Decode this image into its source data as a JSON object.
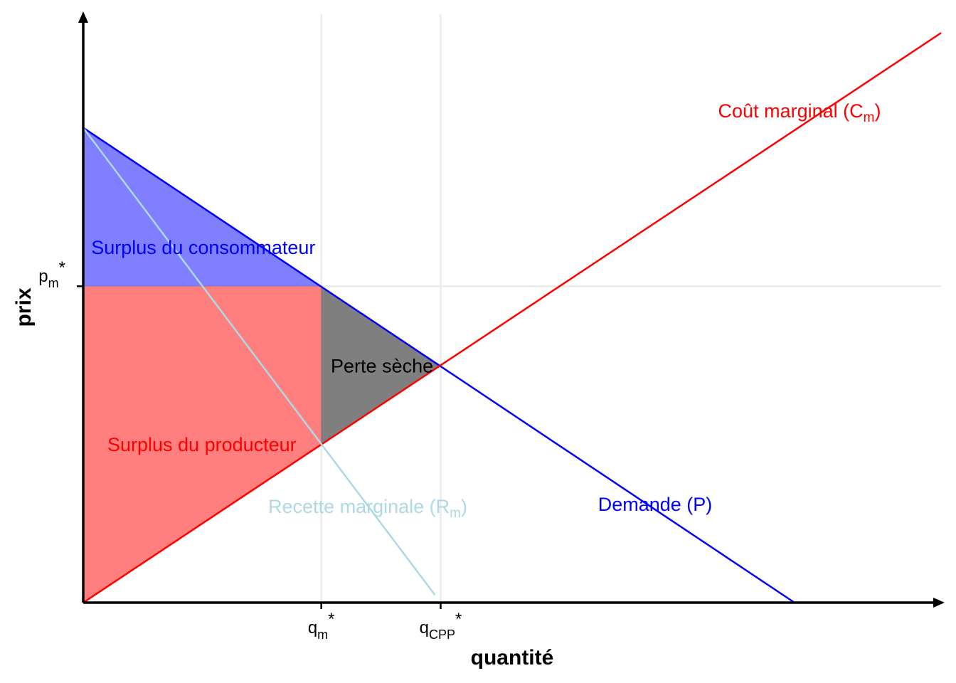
{
  "chart_data": {
    "type": "line",
    "title": "",
    "xlabel": "quantité",
    "ylabel": "prix",
    "xlim": [
      0,
      12
    ],
    "ylim": [
      0,
      8.5
    ],
    "grid": false,
    "x_ticks": [
      {
        "value": 3.33,
        "base": "q",
        "sub": "m",
        "sup": "*"
      },
      {
        "value": 5.0,
        "base": "q",
        "sub": "CPP",
        "sup": "*"
      }
    ],
    "y_ticks": [
      {
        "value": 4.57,
        "base": "p",
        "sub": "m",
        "sup": "*"
      }
    ],
    "series": [
      {
        "name": "Demande (P)",
        "label_main": "Demande (P)",
        "label_sub": "",
        "label_tail": "",
        "color": "#0000ff",
        "x": [
          0,
          9.95
        ],
        "y": [
          6.86,
          0
        ]
      },
      {
        "name": "Coût marginal (Cm)",
        "label_main": "Coût marginal (C",
        "label_sub": "m",
        "label_tail": ")",
        "color": "#ff0000",
        "x": [
          0,
          12.0
        ],
        "y": [
          0,
          8.23
        ]
      },
      {
        "name": "Recette marginale (Rm)",
        "label_main": "Recette marginale (R",
        "label_sub": "m",
        "label_tail": ")",
        "color": "#add8e6",
        "x": [
          0,
          4.92
        ],
        "y": [
          6.86,
          0.11
        ]
      }
    ],
    "areas": [
      {
        "name": "Surplus du consommateur",
        "color": "#0000ff",
        "opacity": 0.5,
        "x": [
          0,
          0,
          3.33
        ],
        "y": [
          6.86,
          4.57,
          4.57
        ]
      },
      {
        "name": "Surplus du producteur",
        "color": "#ff0000",
        "opacity": 0.5,
        "x": [
          0,
          0,
          3.33,
          3.33
        ],
        "y": [
          0,
          4.57,
          4.57,
          2.29
        ]
      },
      {
        "name": "Perte sèche",
        "color": "#000000",
        "opacity": 0.5,
        "x": [
          3.33,
          3.33,
          5.0
        ],
        "y": [
          4.57,
          2.29,
          3.43
        ]
      }
    ],
    "annotations": [
      {
        "text": "Surplus du consommateur",
        "color": "#0000ff",
        "x": 1.68,
        "y": 5.14
      },
      {
        "text": "Perte sèche",
        "color": "#000000",
        "x": 4.18,
        "y": 3.43
      },
      {
        "text": "Surplus du producteur",
        "color": "#ff0000",
        "x": 1.66,
        "y": 2.29
      }
    ],
    "vlines": [
      3.33,
      5.0
    ],
    "hlines": [
      4.57
    ]
  }
}
